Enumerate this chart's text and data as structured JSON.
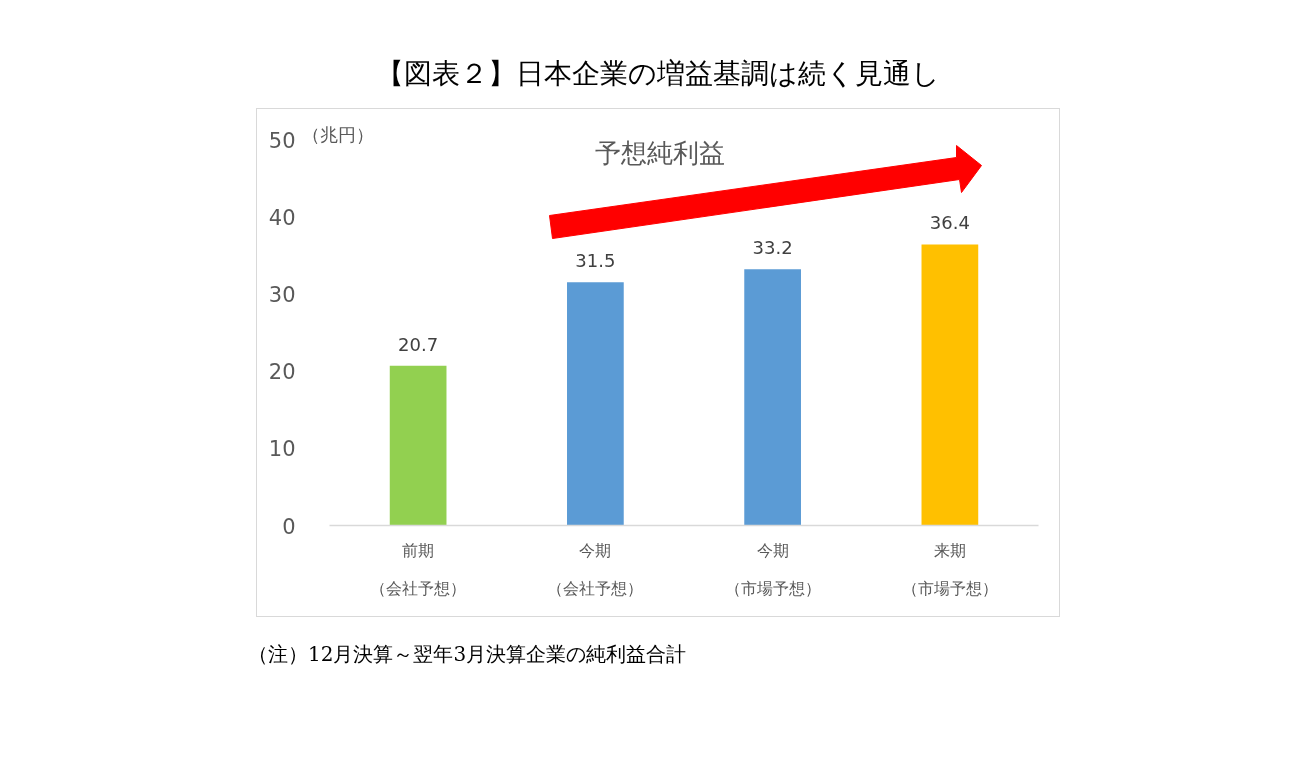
{
  "chart_data": {
    "type": "bar",
    "title": "【図表２】日本企業の増益基調は続く見通し",
    "ylabel": "（兆円）",
    "categories": [
      "前期（会社予想）",
      "今期（会社予想）",
      "今期（市場予想）",
      "来期（市場予想）"
    ],
    "values": [
      20.7,
      31.5,
      33.2,
      36.4
    ],
    "colors": [
      "#92d050",
      "#5b9bd5",
      "#5b9bd5",
      "#ffc000"
    ],
    "ylim": [
      0,
      50
    ],
    "yticks": [
      0,
      10,
      20,
      30,
      40,
      50
    ],
    "data_labels": true,
    "annotations": [
      "予想純利益",
      "（注）12月決算～翌年3月決算企業の純利益合計"
    ]
  }
}
